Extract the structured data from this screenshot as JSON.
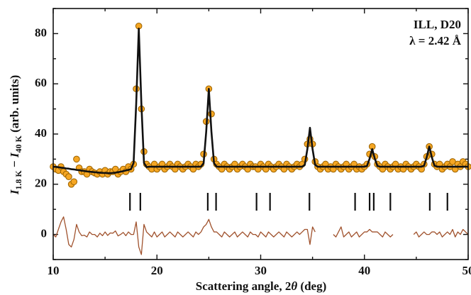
{
  "chart_data": {
    "type": "line",
    "xlabel": [
      "Scattering angle, 2",
      "θ",
      " (deg)"
    ],
    "ylabel": [
      "I",
      "1.8 K",
      " − ",
      "I",
      "40 K",
      " (arb. units)"
    ],
    "annotations": [
      "ILL, D20",
      "λ = 2.42 Å"
    ],
    "xlim": [
      10,
      50
    ],
    "ylim": [
      -10,
      90
    ],
    "xticks": [
      10,
      20,
      30,
      40,
      50
    ],
    "yticks": [
      0,
      20,
      40,
      60,
      80
    ],
    "xminor": [
      15,
      25,
      35,
      45
    ],
    "yminor": [
      -10,
      10,
      30,
      50,
      70,
      90
    ],
    "grid": false,
    "x": [
      10,
      10.25,
      10.5,
      10.75,
      11,
      11.25,
      11.5,
      11.75,
      12,
      12.25,
      12.5,
      12.75,
      13,
      13.25,
      13.5,
      13.75,
      14,
      14.25,
      14.5,
      14.75,
      15,
      15.25,
      15.5,
      15.75,
      16,
      16.25,
      16.5,
      16.75,
      17,
      17.25,
      17.5,
      17.75,
      18,
      18.25,
      18.5,
      18.75,
      19,
      19.25,
      19.5,
      19.75,
      20,
      20.25,
      20.5,
      20.75,
      21,
      21.25,
      21.5,
      21.75,
      22,
      22.25,
      22.5,
      22.75,
      23,
      23.25,
      23.5,
      23.75,
      24,
      24.25,
      24.5,
      24.75,
      25,
      25.25,
      25.5,
      25.75,
      26,
      26.25,
      26.5,
      26.75,
      27,
      27.25,
      27.5,
      27.75,
      28,
      28.25,
      28.5,
      28.75,
      29,
      29.25,
      29.5,
      29.75,
      30,
      30.25,
      30.5,
      30.75,
      31,
      31.25,
      31.5,
      31.75,
      32,
      32.25,
      32.5,
      32.75,
      33,
      33.25,
      33.5,
      33.75,
      34,
      34.25,
      34.5,
      34.75,
      35,
      35.25,
      35.5,
      35.75,
      36,
      36.25,
      36.5,
      36.75,
      37,
      37.25,
      37.5,
      37.75,
      38,
      38.25,
      38.5,
      38.75,
      39,
      39.25,
      39.5,
      39.75,
      40,
      40.25,
      40.5,
      40.75,
      41,
      41.25,
      41.5,
      41.75,
      42,
      42.25,
      42.5,
      42.75,
      43,
      43.25,
      43.5,
      43.75,
      44,
      44.25,
      44.5,
      44.75,
      45,
      45.25,
      45.5,
      45.75,
      46,
      46.25,
      46.5,
      46.75,
      47,
      47.25,
      47.5,
      47.75,
      48,
      48.25,
      48.5,
      48.75,
      49,
      49.25,
      49.5,
      49.75,
      50
    ],
    "series": [
      {
        "style": "markers",
        "color": "#f5a623",
        "edge": "#9a6200",
        "values": [
          27,
          26,
          25.5,
          27,
          25,
          24,
          23,
          20,
          21,
          30,
          26.5,
          25,
          25,
          24,
          26,
          25,
          24.5,
          24,
          25,
          24,
          25.5,
          24,
          25,
          25,
          26,
          24,
          25,
          26,
          25,
          27,
          26,
          28,
          58,
          83,
          50,
          33,
          28,
          27,
          26,
          28,
          26,
          27,
          28,
          26,
          27,
          28,
          27,
          26,
          28,
          27,
          26,
          27,
          28,
          27,
          26,
          28,
          27,
          28,
          32,
          45,
          58,
          48,
          30,
          28,
          27,
          26,
          28,
          27,
          26,
          27,
          28,
          26,
          27,
          28,
          27,
          26,
          28,
          27,
          27,
          26,
          28,
          27,
          26,
          28,
          27,
          26,
          27,
          28,
          27,
          26,
          28,
          27,
          26,
          27,
          28,
          27,
          28,
          30,
          36,
          38,
          36,
          29,
          27,
          26,
          27,
          28,
          26,
          27,
          26,
          28,
          27,
          26,
          27,
          28,
          26,
          27,
          28,
          26,
          27,
          26,
          27,
          28,
          32,
          35,
          31,
          28,
          27,
          26,
          28,
          27,
          26,
          27,
          28,
          26,
          27,
          26,
          28,
          27,
          26,
          27,
          28,
          27,
          26,
          28,
          31,
          35,
          32,
          28,
          27,
          28,
          26,
          27,
          28,
          27,
          29,
          26,
          28,
          27,
          29,
          28,
          27
        ]
      },
      {
        "style": "line",
        "color": "#111111",
        "values": [
          27,
          26.9,
          26.8,
          26.6,
          26.5,
          26.3,
          26.2,
          26,
          25.9,
          25.7,
          25.6,
          25.4,
          25.3,
          25.1,
          25,
          24.9,
          24.8,
          24.7,
          24.6,
          24.5,
          24.5,
          24.4,
          24.4,
          24.5,
          24.6,
          24.8,
          25,
          25.2,
          25.5,
          25.7,
          26,
          28.5,
          52,
          82,
          52,
          28.5,
          26.8,
          27,
          27,
          27,
          27,
          27,
          27,
          27,
          27,
          27,
          27,
          27,
          27,
          27,
          27,
          27,
          27,
          27,
          27,
          27,
          27,
          27,
          28.4,
          41,
          58,
          41,
          28.4,
          27,
          27,
          27,
          27,
          27,
          27,
          27,
          27,
          27,
          27,
          27,
          27,
          27,
          27,
          27,
          27,
          27,
          27,
          27,
          27,
          27,
          27,
          27,
          27,
          27,
          27,
          27,
          27,
          27,
          27,
          27,
          27,
          27,
          27,
          27.7,
          34,
          42.5,
          34,
          27.7,
          27,
          27,
          27,
          27,
          27,
          27,
          27,
          27,
          27,
          27,
          27,
          27,
          27,
          27,
          27,
          27,
          27,
          27,
          27,
          27.3,
          30.2,
          34,
          30.2,
          27.3,
          27,
          27,
          27,
          27,
          27,
          27,
          27,
          27,
          27,
          27,
          27,
          27,
          27,
          27,
          27,
          27,
          27,
          27.4,
          30.7,
          35,
          30.7,
          27.4,
          27,
          27,
          27,
          27,
          27,
          27,
          27,
          27,
          27,
          27,
          27,
          27,
          27
        ]
      },
      {
        "style": "line",
        "color": "#a0522d",
        "values": [
          0,
          -1,
          2,
          5,
          7,
          2,
          -4,
          -5,
          -2,
          4,
          1,
          -0.5,
          -0.3,
          -1,
          1,
          0,
          0,
          -1,
          0.5,
          -0.5,
          1,
          -0.4,
          0.6,
          0.5,
          1.4,
          -0.6,
          0,
          0.8,
          -0.5,
          1,
          0,
          0,
          5,
          -5,
          -8,
          4,
          1,
          0,
          -1,
          1,
          -1,
          0,
          1,
          -1,
          0,
          1,
          0,
          -1,
          1,
          0,
          -1,
          0,
          1,
          0,
          -1,
          1,
          0,
          1,
          3,
          4,
          6,
          3,
          1,
          1,
          0,
          -1,
          1,
          0,
          -1,
          0,
          1,
          -1,
          0,
          1,
          0,
          -1,
          1,
          0,
          0,
          -1,
          1,
          0,
          -1,
          1,
          0,
          -1,
          0,
          1,
          0,
          -1,
          1,
          0,
          -1,
          0,
          1,
          0,
          1,
          2,
          2,
          -4,
          3,
          1,
          null,
          null,
          null,
          null,
          null,
          null,
          0,
          -1,
          1,
          3,
          -1,
          0,
          1,
          -1,
          0,
          1,
          -1,
          0,
          1,
          1,
          2,
          1,
          1,
          1,
          0,
          -1,
          1,
          0,
          -1,
          0,
          null,
          null,
          null,
          null,
          null,
          null,
          null,
          0,
          1,
          -1,
          0,
          1,
          0,
          0,
          1,
          1,
          0,
          1,
          -1,
          0,
          1,
          0,
          2,
          -1,
          1,
          0,
          2,
          1,
          0
        ]
      }
    ],
    "reflections": [
      17.4,
      18.4,
      24.9,
      25.7,
      29.6,
      30.9,
      34.7,
      39.1,
      40.5,
      40.9,
      42.5,
      46.3,
      48.0
    ]
  }
}
